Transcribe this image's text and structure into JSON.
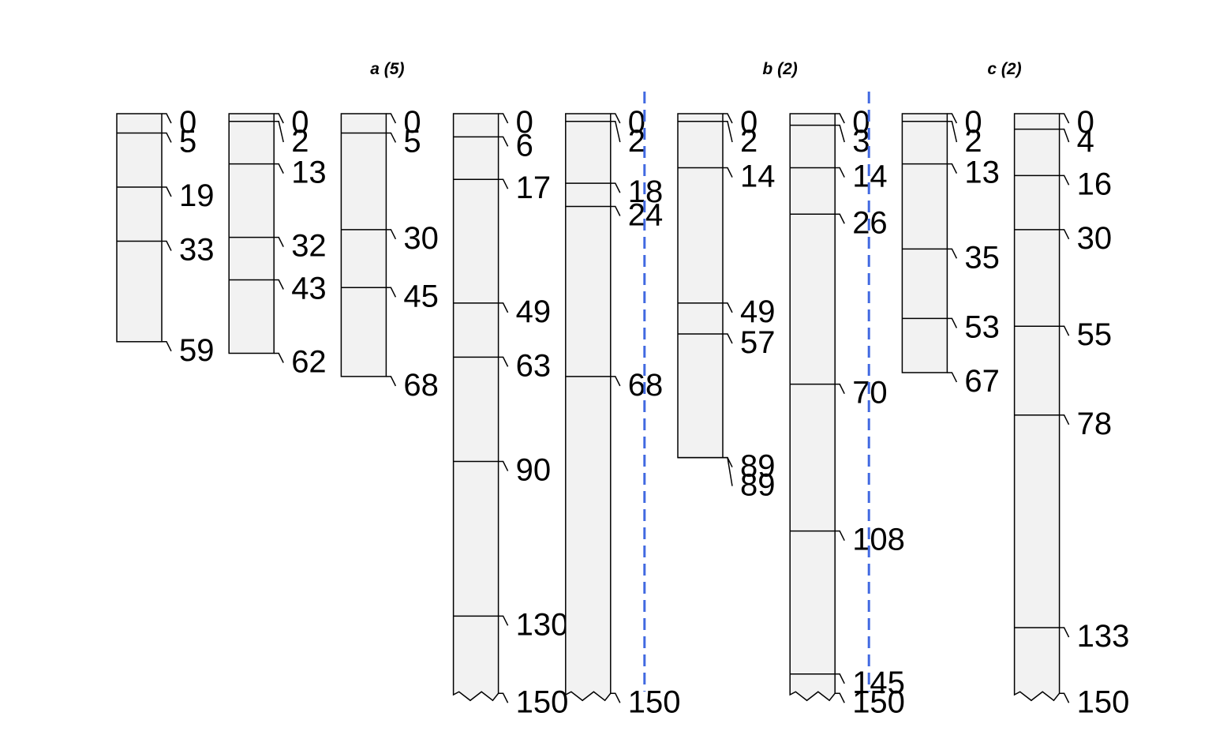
{
  "chart_data": {
    "type": "soil-profile-sketch",
    "groups": [
      {
        "label": "a (5)",
        "profiles": [
          0,
          1,
          2,
          3,
          4
        ]
      },
      {
        "label": "b (2)",
        "profiles": [
          5,
          6
        ]
      },
      {
        "label": "c (2)",
        "profiles": [
          7,
          8
        ]
      }
    ],
    "profiles": [
      {
        "depths": [
          0,
          5,
          19,
          33,
          59
        ],
        "truncated": false
      },
      {
        "depths": [
          0,
          2,
          13,
          32,
          43,
          62
        ],
        "truncated": false
      },
      {
        "depths": [
          0,
          5,
          30,
          45,
          68
        ],
        "truncated": false
      },
      {
        "depths": [
          0,
          6,
          17,
          49,
          63,
          90,
          130,
          150
        ],
        "truncated": true
      },
      {
        "depths": [
          0,
          2,
          18,
          24,
          68,
          150
        ],
        "truncated": true
      },
      {
        "depths": [
          0,
          2,
          14,
          49,
          57,
          89,
          89
        ],
        "truncated": false
      },
      {
        "depths": [
          0,
          3,
          14,
          26,
          70,
          108,
          145,
          150
        ],
        "truncated": true
      },
      {
        "depths": [
          0,
          2,
          13,
          35,
          53,
          67
        ],
        "truncated": false
      },
      {
        "depths": [
          0,
          4,
          16,
          30,
          55,
          78,
          133,
          150
        ],
        "truncated": true
      }
    ],
    "group_dividers_after_profile": [
      4,
      6
    ],
    "colors": {
      "fill": "#f2f2f2",
      "stroke": "#000000",
      "divider": "#4169e1"
    }
  }
}
